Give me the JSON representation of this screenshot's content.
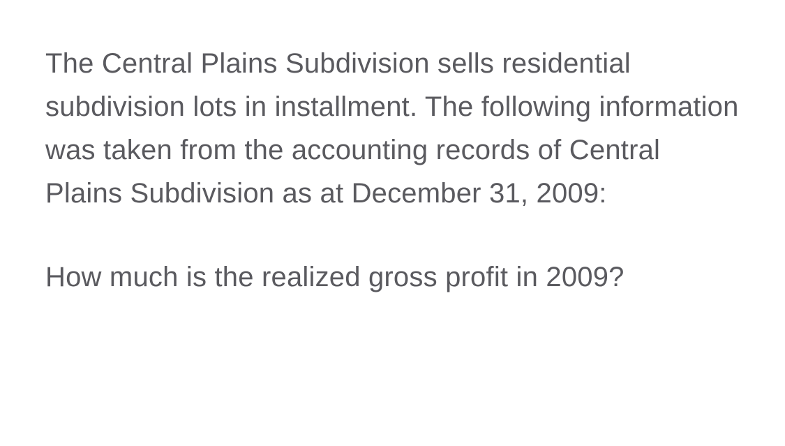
{
  "document": {
    "paragraph1": "The Central Plains Subdivision sells residential subdivision lots in installment. The following information was taken from the accounting records of Central Plains Subdivision as at December 31, 2009:",
    "paragraph2": "How much is the realized gross profit in 2009?",
    "text_color": "#5a5a5f",
    "background_color": "#ffffff",
    "font_size": 40,
    "line_height": 1.55
  }
}
